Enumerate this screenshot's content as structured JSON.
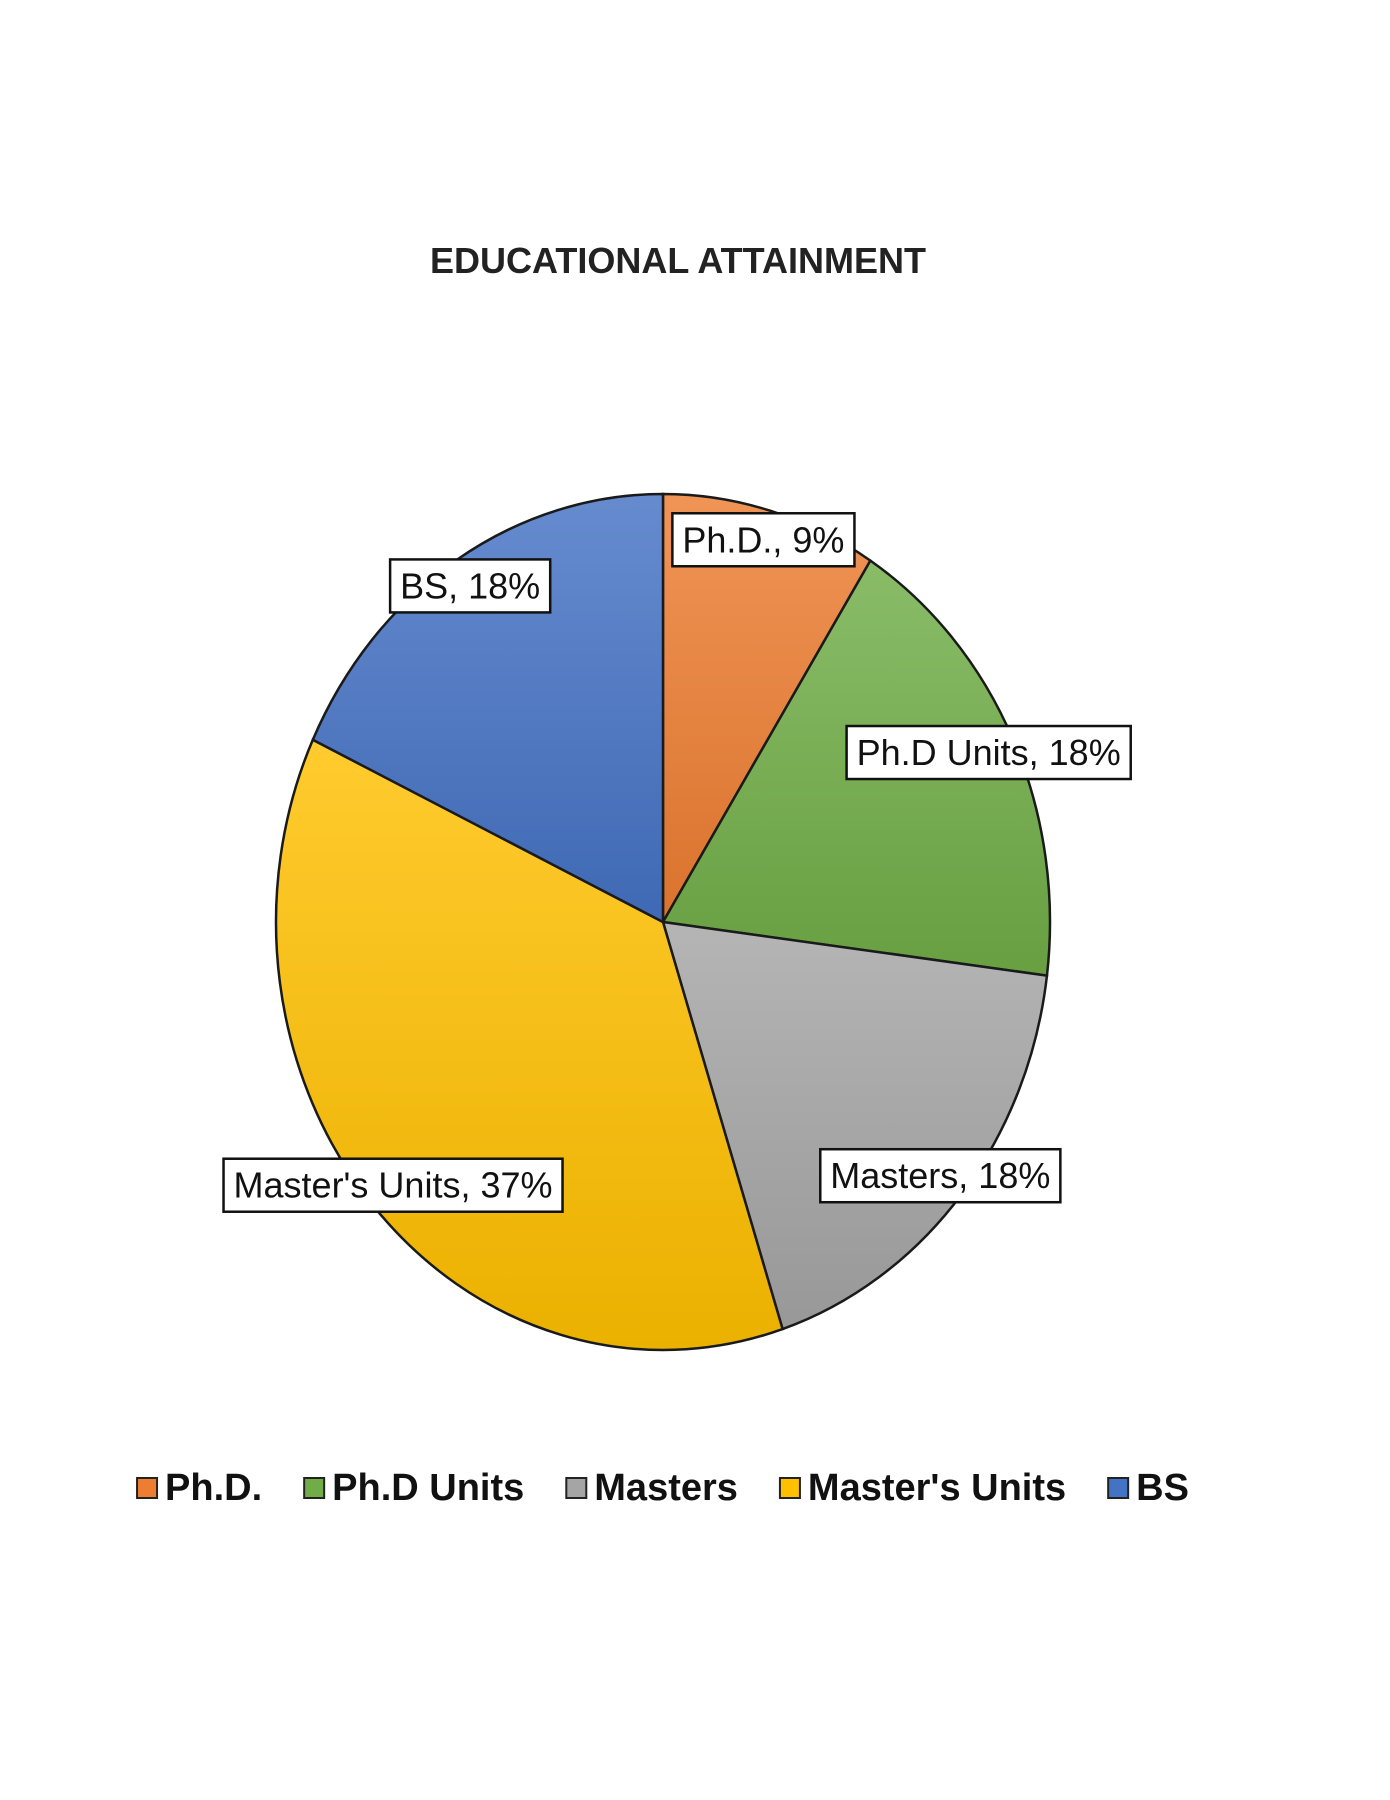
{
  "chart_data": {
    "type": "pie",
    "title": "EDUCATIONAL ATTAINMENT",
    "slices": [
      {
        "name": "Ph.D.",
        "value": 9,
        "label": "Ph.D., 9%",
        "color": "#ED7D31"
      },
      {
        "name": "Ph.D Units",
        "value": 18,
        "label": "Ph.D Units,  18%",
        "color": "#70AD47"
      },
      {
        "name": "Masters",
        "value": 18,
        "label": "Masters, 18%",
        "color": "#A5A5A5"
      },
      {
        "name": "Master's Units",
        "value": 37,
        "label": "Master's Units, 37%",
        "color": "#FFC000"
      },
      {
        "name": "BS",
        "value": 18,
        "label": "BS,  18%",
        "color": "#4472C4"
      }
    ],
    "legend": {
      "position": "bottom",
      "items": [
        "Ph.D.",
        "Ph.D Units",
        "Masters",
        "Master's Units",
        "BS"
      ]
    }
  }
}
